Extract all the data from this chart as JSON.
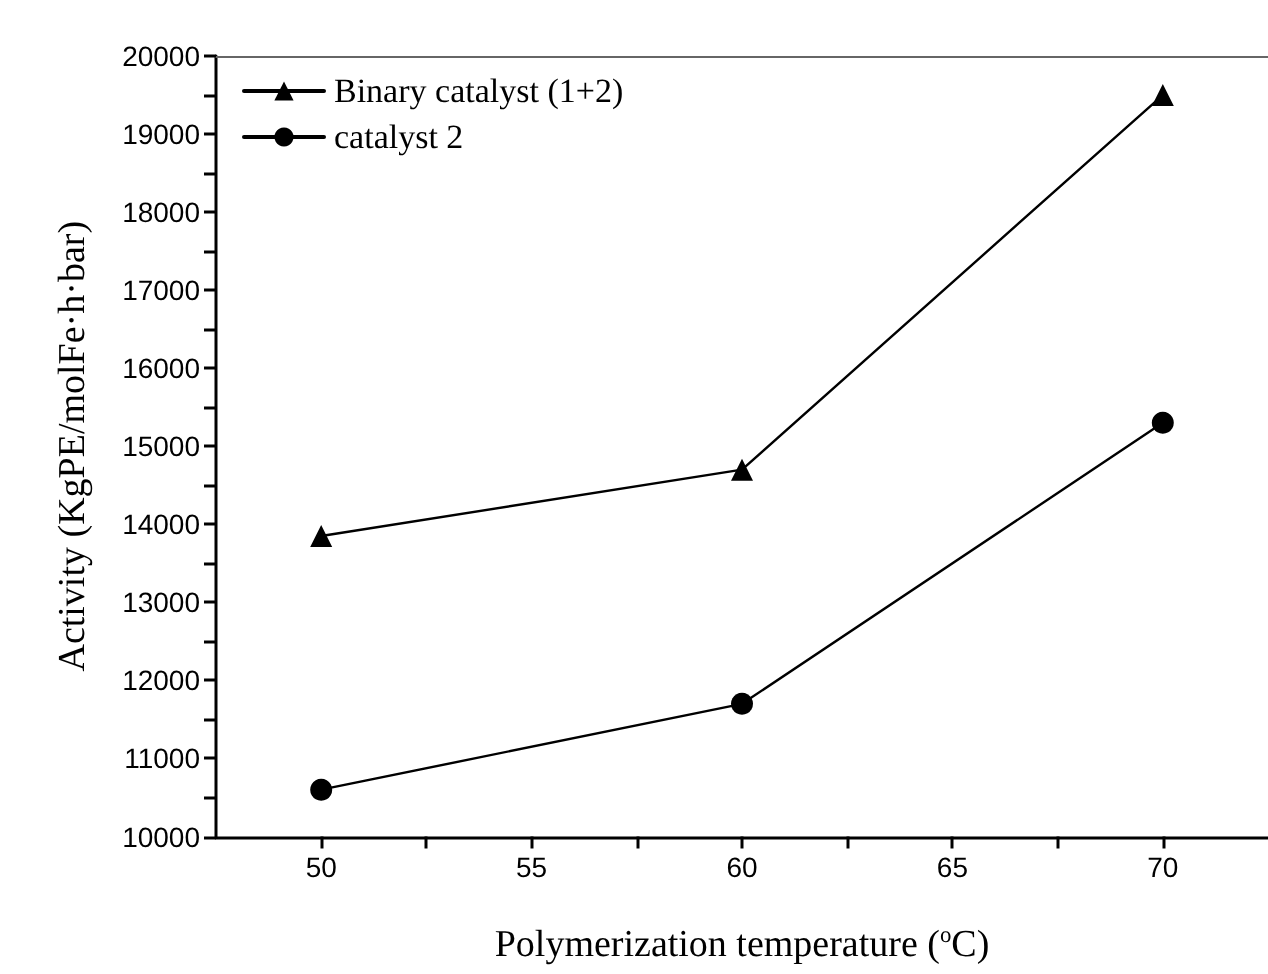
{
  "chart_data": {
    "type": "line",
    "xlabel": "Polymerization temperature ($^{o}$C)",
    "ylabel": "Activity (KgPE/molFe·h·bar)",
    "x": [
      50,
      60,
      70
    ],
    "series": [
      {
        "name": "Binary catalyst (1+2)",
        "color": "#000000",
        "marker": "triangle",
        "values": [
          13850,
          14700,
          19500
        ]
      },
      {
        "name": "catalyst 2",
        "color": "#000000",
        "marker": "circle",
        "values": [
          10600,
          11700,
          15300
        ]
      }
    ],
    "xlim": [
      47.5,
      72.5
    ],
    "xticks": [
      50,
      {
        "value": 52.5,
        "label": null
      },
      55,
      {
        "value": 57.5,
        "label": null
      },
      60,
      {
        "value": 62.5,
        "label": null
      },
      65,
      {
        "value": 67.5,
        "label": null
      },
      70
    ],
    "ylim": [
      10000,
      20000
    ],
    "yticks": [
      10000,
      {
        "value": 10500,
        "label": null
      },
      11000,
      {
        "value": 11500,
        "label": null
      },
      12000,
      {
        "value": 12500,
        "label": null
      },
      13000,
      {
        "value": 13500,
        "label": null
      },
      14000,
      {
        "value": 14500,
        "label": null
      },
      15000,
      {
        "value": 15500,
        "label": null
      },
      16000,
      {
        "value": 16500,
        "label": null
      },
      17000,
      {
        "value": 17500,
        "label": null
      },
      18000,
      {
        "value": 18500,
        "label": null
      },
      19000,
      {
        "value": 19500,
        "label": null
      },
      20000
    ],
    "grid": false,
    "legend": "top left",
    "line_style": "solid"
  }
}
